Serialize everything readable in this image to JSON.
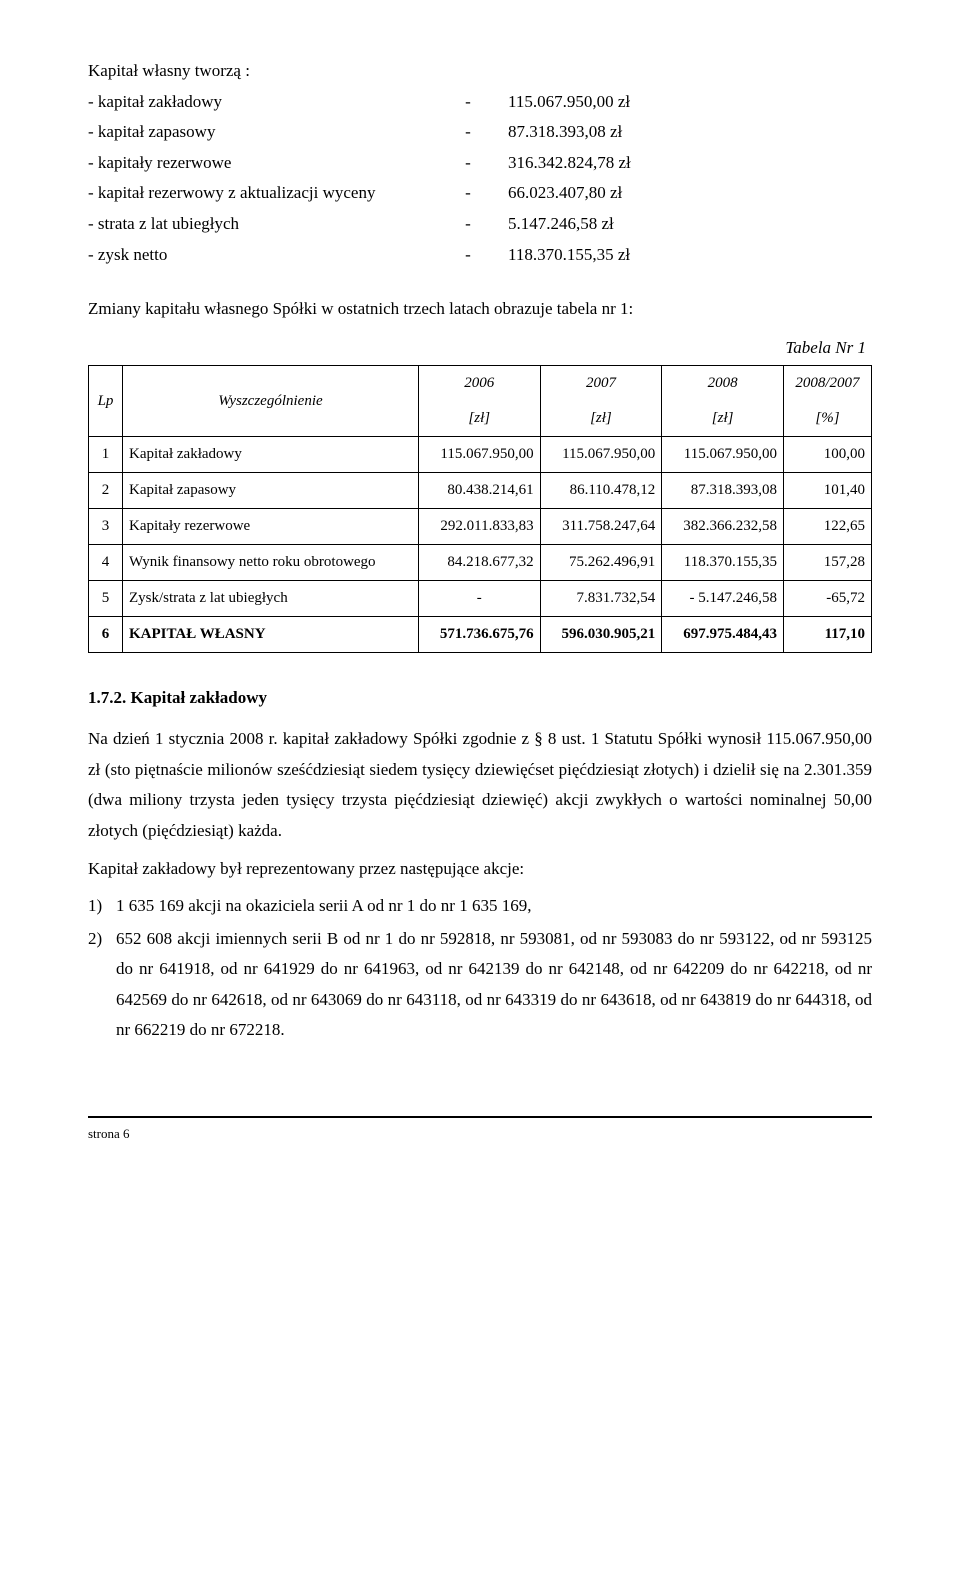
{
  "list_title": "Kapitał własny tworzą :",
  "kv": [
    {
      "label": "- kapitał zakładowy",
      "value": "115.067.950,00 zł"
    },
    {
      "label": "- kapitał zapasowy",
      "value": "87.318.393,08 zł"
    },
    {
      "label": "- kapitały rezerwowe",
      "value": "316.342.824,78 zł"
    },
    {
      "label": "- kapitał rezerwowy z aktualizacji wyceny",
      "value": "66.023.407,80 zł"
    },
    {
      "label": "- strata z lat ubiegłych",
      "value": "5.147.246,58 zł"
    },
    {
      "label": "- zysk netto",
      "value": "118.370.155,35 zł"
    }
  ],
  "intro": "Zmiany kapitału własnego Spółki w ostatnich trzech latach obrazuje tabela nr 1:",
  "table_caption": "Tabela Nr 1",
  "headers": {
    "lp": "Lp",
    "name": "Wyszczególnienie",
    "c1_top": "2006",
    "c1_bot": "[zł]",
    "c2_top": "2007",
    "c2_bot": "[zł]",
    "c3_top": "2008",
    "c3_bot": "[zł]",
    "c4_top": "2008/2007",
    "c4_bot": "[%]"
  },
  "rows": [
    {
      "lp": "1",
      "name": "Kapitał zakładowy",
      "c1": "115.067.950,00",
      "c2": "115.067.950,00",
      "c3": "115.067.950,00",
      "c4": "100,00"
    },
    {
      "lp": "2",
      "name": "Kapitał zapasowy",
      "c1": "80.438.214,61",
      "c2": "86.110.478,12",
      "c3": "87.318.393,08",
      "c4": "101,40"
    },
    {
      "lp": "3",
      "name": "Kapitały rezerwowe",
      "c1": "292.011.833,83",
      "c2": "311.758.247,64",
      "c3": "382.366.232,58",
      "c4": "122,65"
    },
    {
      "lp": "4",
      "name": "Wynik finansowy netto roku obrotowego",
      "c1": "84.218.677,32",
      "c2": "75.262.496,91",
      "c3": "118.370.155,35",
      "c4": "157,28"
    },
    {
      "lp": "5",
      "name": "Zysk/strata z lat ubiegłych",
      "c1": "-",
      "c2": "7.831.732,54",
      "c3": "- 5.147.246,58",
      "c4": "-65,72"
    },
    {
      "lp": "6",
      "name": "KAPITAŁ  WŁASNY",
      "c1": "571.736.675,76",
      "c2": "596.030.905,21",
      "c3": "697.975.484,43",
      "c4": "117,10",
      "bold": true
    }
  ],
  "section_heading": "1.7.2. Kapitał zakładowy",
  "para1": "Na dzień 1 stycznia 2008 r. kapitał zakładowy Spółki zgodnie z § 8 ust. 1 Statutu Spółki wynosił 115.067.950,00 zł (sto piętnaście milionów sześćdziesiąt siedem tysięcy dziewięćset pięćdziesiąt złotych) i dzielił się na 2.301.359 (dwa miliony trzysta jeden tysięcy trzysta pięćdziesiąt dziewięć) akcji zwykłych o wartości nominalnej 50,00 złotych (pięćdziesiąt) każda.",
  "para2": "Kapitał zakładowy był reprezentowany przez następujące akcje:",
  "ol": [
    {
      "n": "1)",
      "t": "1 635 169 akcji na okaziciela serii A od nr 1 do nr 1 635 169,"
    },
    {
      "n": "2)",
      "t": "652 608 akcji imiennych serii B od nr 1 do nr 592818, nr 593081, od nr 593083 do nr 593122, od nr 593125 do nr 641918, od nr 641929 do nr 641963, od nr 642139 do nr 642148, od nr 642209 do nr 642218, od nr 642569 do nr 642618, od nr 643069 do nr 643118, od nr 643319 do nr 643618, od nr 643819 do nr 644318, od nr 662219 do nr 672218."
    }
  ],
  "footer": "strona 6"
}
